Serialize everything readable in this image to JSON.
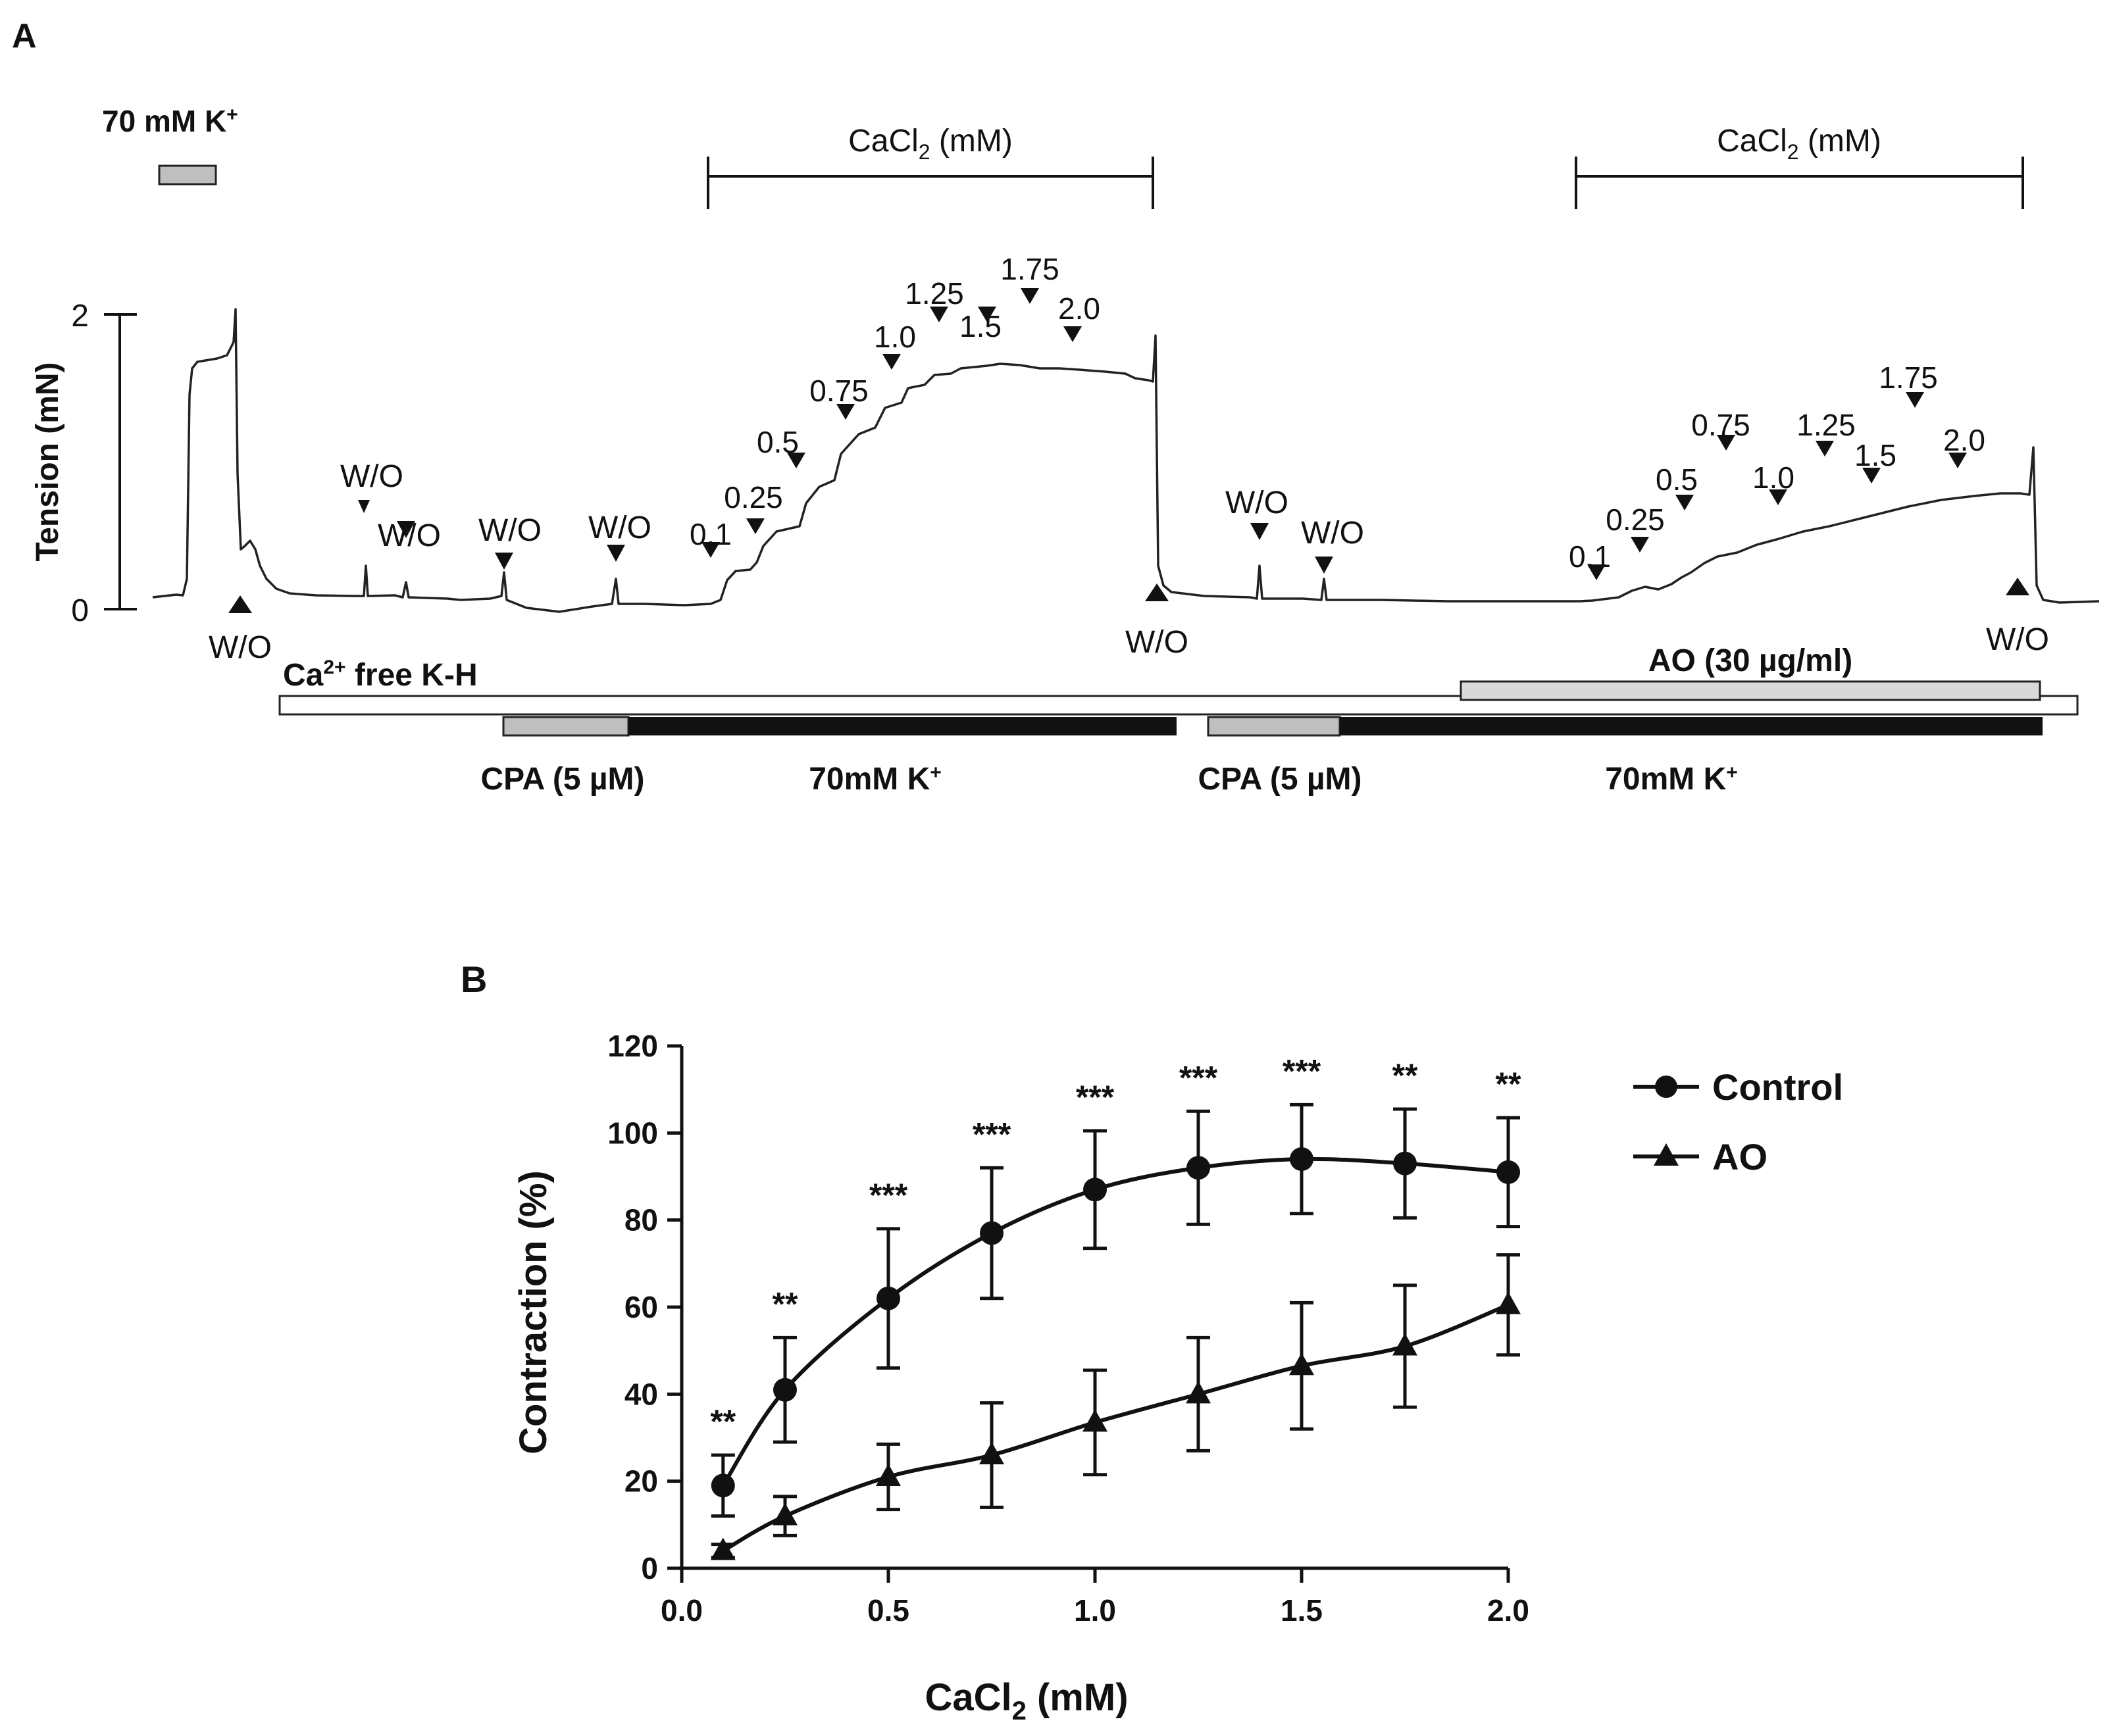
{
  "panel_a": {
    "label": "A",
    "ylabel": "Tension (mN)",
    "ytick_top": "2",
    "ytick_bottom": "0",
    "k70_label": "70 mM K",
    "k70_sup": "+",
    "cacl2_bracket_1": {
      "main": "CaCl",
      "sub": "2",
      "tail": " (mM)"
    },
    "cacl2_bracket_2": {
      "main": "CaCl",
      "sub": "2",
      "tail": " (mM)"
    },
    "washout_label": "W/O",
    "doses_control": [
      "0.1",
      "0.25",
      "0.5",
      "0.75",
      "1.0",
      "1.25",
      "1.5",
      "1.75",
      "2.0"
    ],
    "doses_ao": [
      "0.1",
      "0.25",
      "0.5",
      "0.75",
      "1.0",
      "1.25",
      "1.5",
      "1.75",
      "2.0"
    ],
    "ca_free_label": {
      "pre": "Ca",
      "sup": "2+",
      "post": " free K-H"
    },
    "ao_label": "AO (30 µg/ml)",
    "cpa_label_1": "CPA (5 µM)",
    "cpa_label_2": "CPA (5 µM)",
    "k70_bar_label_1": {
      "main": "70mM K",
      "sup": "+"
    },
    "k70_bar_label_2": {
      "main": "70mM K",
      "sup": "+"
    },
    "colors": {
      "ink": "#111111",
      "gray_bar": "#bfbfbf",
      "light_bar": "#d9d9d9"
    }
  },
  "panel_b": {
    "label": "B"
  },
  "chart_data": {
    "type": "line",
    "title": "",
    "xlabel": {
      "main": "CaCl",
      "sub": "2",
      "tail": " (mM)"
    },
    "ylabel": "Contraction (%)",
    "xlim": [
      0.0,
      2.0
    ],
    "ylim": [
      0,
      120
    ],
    "xticks": [
      "0.0",
      "0.5",
      "1.0",
      "1.5",
      "2.0"
    ],
    "yticks": [
      "0",
      "20",
      "40",
      "60",
      "80",
      "100",
      "120"
    ],
    "x": [
      0.1,
      0.25,
      0.5,
      0.75,
      1.0,
      1.25,
      1.5,
      1.75,
      2.0
    ],
    "series": [
      {
        "name": "Control",
        "marker": "circle",
        "values": [
          19,
          41,
          62,
          77,
          87,
          92,
          94,
          93,
          91
        ],
        "errors": [
          7,
          12,
          16,
          15,
          13.5,
          13,
          12.5,
          12.5,
          12.5
        ]
      },
      {
        "name": "AO",
        "marker": "triangle",
        "values": [
          4,
          12,
          21,
          26,
          33.5,
          40,
          46.5,
          51,
          60.5
        ],
        "errors": [
          1.5,
          4.5,
          7.5,
          12,
          12,
          13,
          14.5,
          14,
          11.5
        ]
      }
    ],
    "significance": [
      "**",
      "**",
      "***",
      "***",
      "***",
      "***",
      "***",
      "**",
      "**"
    ],
    "legend_position": "top-right",
    "grid": false
  }
}
